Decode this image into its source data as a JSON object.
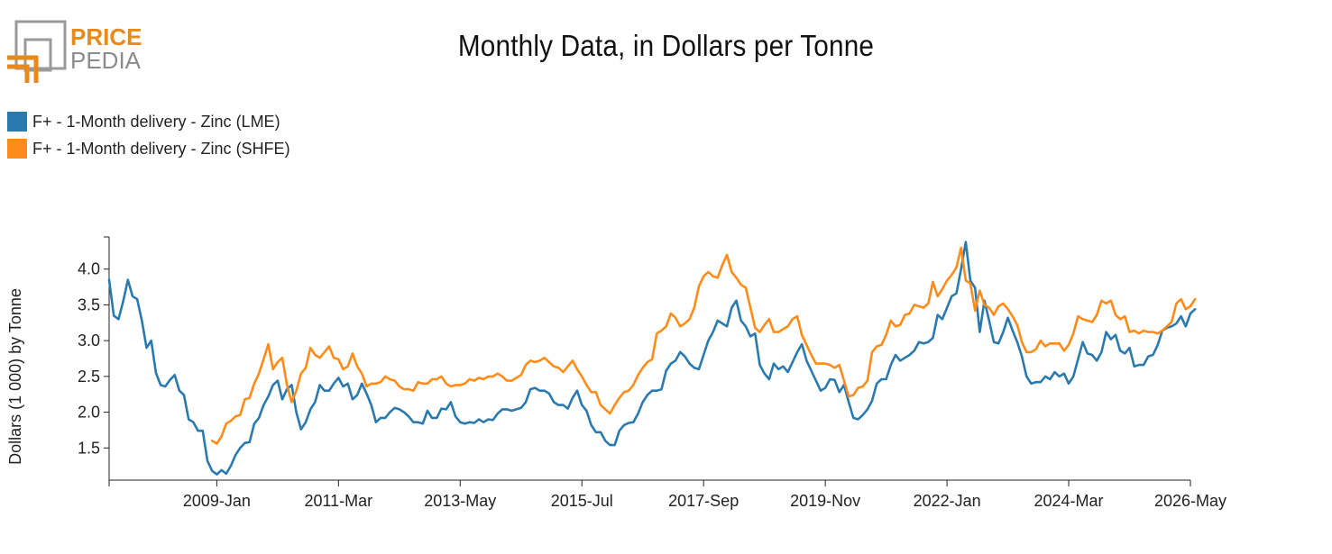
{
  "header": {
    "logo_line1": "PRICE",
    "logo_line2": "PEDIA",
    "title": "Monthly Data, in Dollars per Tonne"
  },
  "colors": {
    "lme": "#2a7ab0",
    "shfe": "#ff8c1a",
    "brand_orange": "#e8891a",
    "brand_gray": "#8c8c8c"
  },
  "chart_data": {
    "type": "line",
    "title": "Monthly Data, in Dollars per Tonne",
    "ylabel": "Dollars (1 000) by Tonne",
    "xlabel": "",
    "ylim": [
      1.05,
      4.45
    ],
    "yticks": [
      "1.5",
      "2.0",
      "2.5",
      "3.0",
      "3.5",
      "4.0"
    ],
    "xtick_labels": [
      "2009-Jan",
      "2011-Mar",
      "2013-May",
      "2015-Jul",
      "2017-Sep",
      "2019-Nov",
      "2022-Jan",
      "2024-Mar",
      "2026-May"
    ],
    "x_start": "2007-Feb",
    "grid": false,
    "legend_position": "top-left",
    "series": [
      {
        "name": "F+ - 1-Month delivery - Zinc (LME)",
        "color": "#2a7ab0",
        "start": "2007-02",
        "values": [
          3.85,
          3.35,
          3.3,
          3.55,
          3.85,
          3.62,
          3.58,
          3.28,
          2.9,
          3.0,
          2.55,
          2.38,
          2.36,
          2.45,
          2.52,
          2.3,
          2.24,
          1.9,
          1.86,
          1.74,
          1.74,
          1.32,
          1.18,
          1.13,
          1.19,
          1.14,
          1.25,
          1.4,
          1.5,
          1.57,
          1.58,
          1.84,
          1.92,
          2.1,
          2.22,
          2.38,
          2.44,
          2.18,
          2.32,
          2.38,
          2.0,
          1.76,
          1.86,
          2.04,
          2.14,
          2.38,
          2.3,
          2.3,
          2.4,
          2.48,
          2.36,
          2.4,
          2.18,
          2.24,
          2.4,
          2.26,
          2.1,
          1.86,
          1.92,
          1.92,
          2.0,
          2.06,
          2.04,
          2.0,
          1.94,
          1.86,
          1.86,
          1.84,
          2.02,
          1.92,
          1.92,
          2.05,
          2.04,
          2.14,
          1.94,
          1.86,
          1.84,
          1.86,
          1.85,
          1.9,
          1.86,
          1.9,
          1.89,
          1.98,
          2.04,
          2.04,
          2.02,
          2.04,
          2.06,
          2.14,
          2.32,
          2.34,
          2.3,
          2.3,
          2.26,
          2.14,
          2.1,
          2.1,
          2.05,
          2.2,
          2.3,
          2.1,
          2.02,
          1.82,
          1.72,
          1.72,
          1.6,
          1.54,
          1.54,
          1.74,
          1.82,
          1.85,
          1.86,
          1.98,
          2.14,
          2.24,
          2.3,
          2.3,
          2.32,
          2.58,
          2.68,
          2.72,
          2.84,
          2.78,
          2.68,
          2.62,
          2.6,
          2.8,
          3.0,
          3.12,
          3.28,
          3.24,
          3.2,
          3.46,
          3.56,
          3.28,
          3.2,
          3.06,
          3.1,
          2.66,
          2.54,
          2.46,
          2.68,
          2.6,
          2.64,
          2.56,
          2.7,
          2.84,
          2.95,
          2.72,
          2.58,
          2.44,
          2.3,
          2.34,
          2.46,
          2.45,
          2.28,
          2.38,
          2.14,
          1.92,
          1.9,
          1.96,
          2.04,
          2.16,
          2.4,
          2.46,
          2.46,
          2.66,
          2.8,
          2.72,
          2.76,
          2.8,
          2.86,
          2.98,
          2.96,
          2.98,
          3.04,
          3.36,
          3.3,
          3.46,
          3.62,
          3.66,
          4.0,
          4.38,
          3.84,
          3.74,
          3.12,
          3.56,
          3.28,
          2.98,
          2.96,
          3.12,
          3.32,
          3.14,
          2.98,
          2.78,
          2.5,
          2.4,
          2.42,
          2.42,
          2.5,
          2.46,
          2.56,
          2.5,
          2.54,
          2.4,
          2.5,
          2.74,
          2.98,
          2.82,
          2.8,
          2.72,
          2.84,
          3.12,
          3.02,
          3.08,
          2.86,
          2.82,
          2.9,
          2.64,
          2.66,
          2.66,
          2.78,
          2.8,
          2.94,
          3.14,
          3.18,
          3.2,
          3.24,
          3.34,
          3.2,
          3.38,
          3.44
        ]
      },
      {
        "name": "F+ - 1-Month delivery - Zinc (SHFE)",
        "color": "#ff8c1a",
        "start": "2008-12",
        "values": [
          1.6,
          1.56,
          1.66,
          1.84,
          1.88,
          1.94,
          1.96,
          2.18,
          2.2,
          2.4,
          2.54,
          2.74,
          2.95,
          2.6,
          2.7,
          2.76,
          2.38,
          2.14,
          2.3,
          2.54,
          2.62,
          2.9,
          2.8,
          2.76,
          2.84,
          2.92,
          2.76,
          2.74,
          2.6,
          2.64,
          2.82,
          2.64,
          2.54,
          2.36,
          2.4,
          2.4,
          2.42,
          2.5,
          2.46,
          2.44,
          2.36,
          2.32,
          2.32,
          2.3,
          2.42,
          2.4,
          2.4,
          2.46,
          2.46,
          2.5,
          2.4,
          2.36,
          2.38,
          2.38,
          2.4,
          2.46,
          2.44,
          2.48,
          2.46,
          2.5,
          2.5,
          2.54,
          2.5,
          2.44,
          2.44,
          2.48,
          2.52,
          2.66,
          2.72,
          2.7,
          2.72,
          2.76,
          2.7,
          2.64,
          2.62,
          2.56,
          2.64,
          2.72,
          2.6,
          2.5,
          2.38,
          2.28,
          2.28,
          2.1,
          2.04,
          1.98,
          2.1,
          2.2,
          2.28,
          2.3,
          2.38,
          2.52,
          2.62,
          2.7,
          2.74,
          3.1,
          3.14,
          3.2,
          3.38,
          3.32,
          3.2,
          3.24,
          3.3,
          3.46,
          3.76,
          3.9,
          3.96,
          3.9,
          3.88,
          4.06,
          4.2,
          3.96,
          3.88,
          3.78,
          3.74,
          3.46,
          3.18,
          3.12,
          3.22,
          3.3,
          3.12,
          3.12,
          3.16,
          3.2,
          3.3,
          3.34,
          3.08,
          2.94,
          2.8,
          2.68,
          2.68,
          2.68,
          2.66,
          2.62,
          2.66,
          2.44,
          2.22,
          2.24,
          2.34,
          2.36,
          2.44,
          2.84,
          2.92,
          2.94,
          3.08,
          3.28,
          3.2,
          3.22,
          3.36,
          3.38,
          3.5,
          3.48,
          3.46,
          3.52,
          3.82,
          3.62,
          3.72,
          3.84,
          3.92,
          4.02,
          4.3,
          3.84,
          3.8,
          3.42,
          3.7,
          3.5,
          3.46,
          3.36,
          3.48,
          3.52,
          3.44,
          3.34,
          3.22,
          2.98,
          2.84,
          2.84,
          2.88,
          3.0,
          2.92,
          2.96,
          2.96,
          2.96,
          2.86,
          2.94,
          3.1,
          3.34,
          3.3,
          3.28,
          3.26,
          3.36,
          3.56,
          3.52,
          3.56,
          3.36,
          3.3,
          3.34,
          3.12,
          3.14,
          3.1,
          3.14,
          3.12,
          3.12,
          3.1,
          3.14,
          3.2,
          3.26,
          3.52,
          3.58,
          3.44,
          3.48,
          3.58
        ]
      }
    ]
  }
}
